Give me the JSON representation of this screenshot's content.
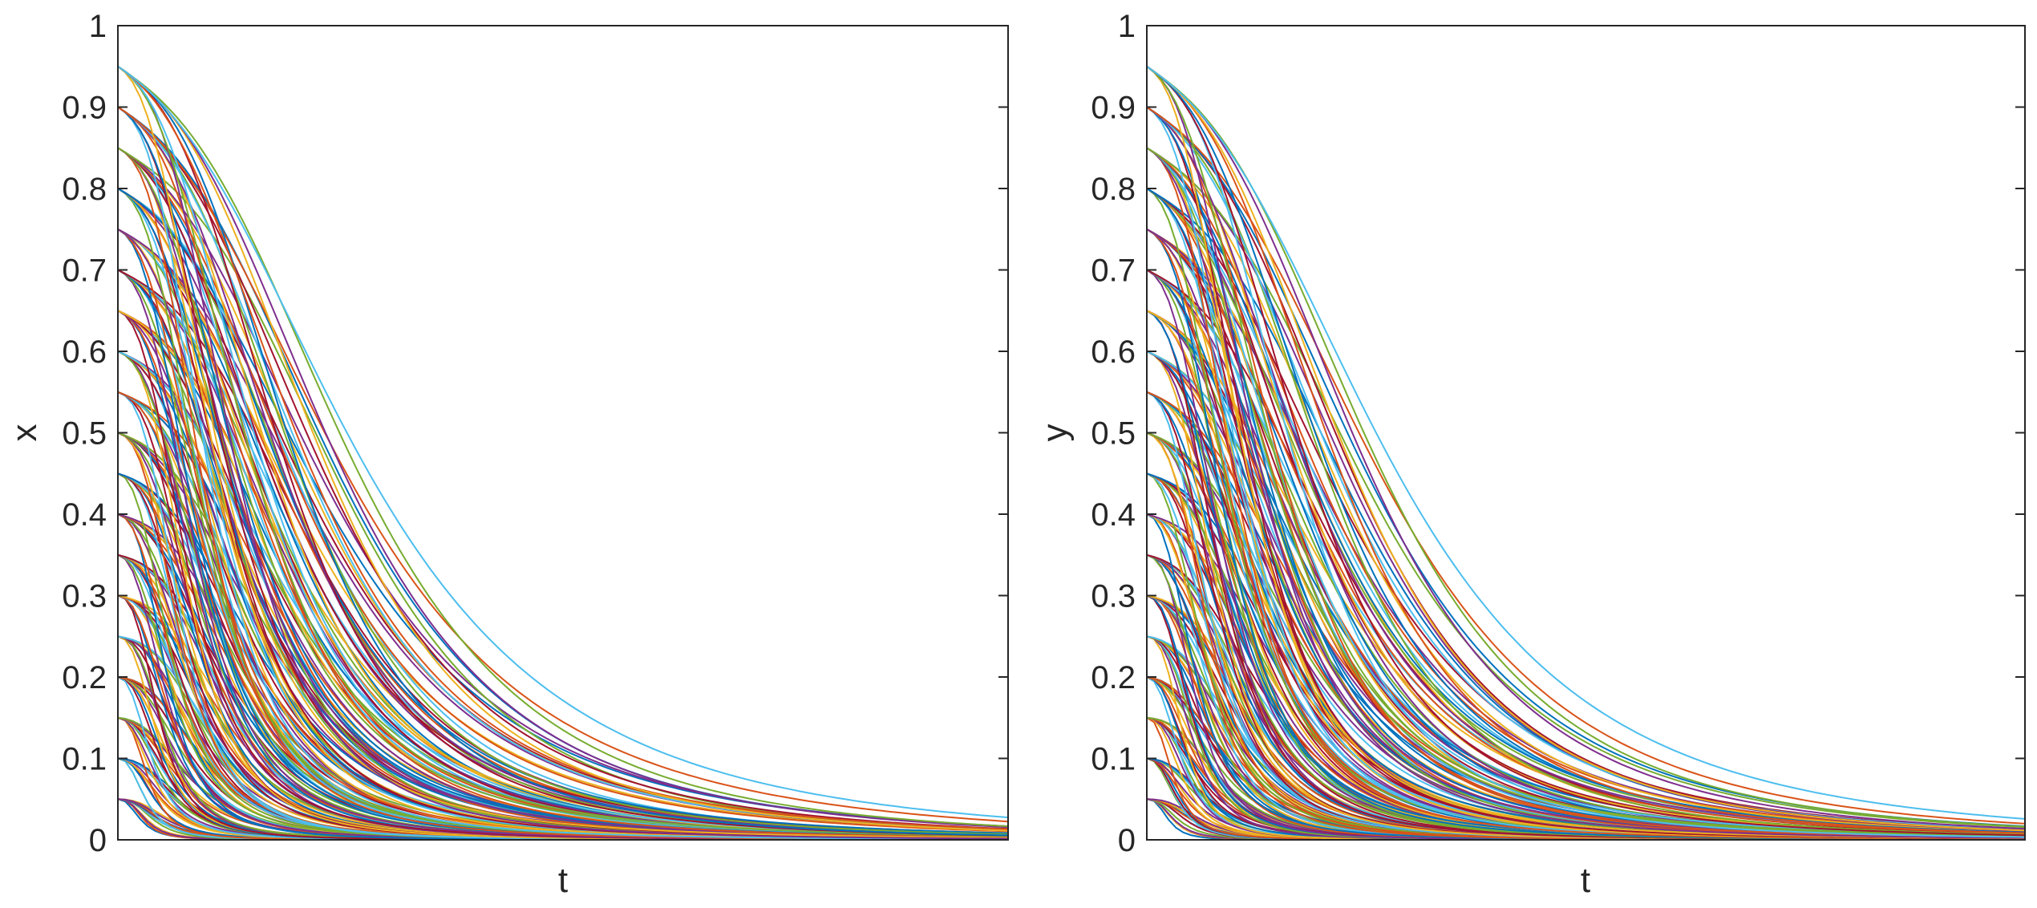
{
  "chart_data": [
    {
      "type": "line",
      "xlabel": "t",
      "ylabel": "x",
      "ylim": [
        0,
        1
      ],
      "yticks": [
        "0",
        "0.1",
        "0.2",
        "0.3",
        "0.4",
        "0.5",
        "0.6",
        "0.7",
        "0.8",
        "0.9",
        "1"
      ],
      "xticks_labeled": false,
      "grid": false,
      "legend": "none",
      "series_note_count": 190,
      "initial_values": [
        0.05,
        0.1,
        0.15,
        0.2,
        0.25,
        0.3,
        0.35,
        0.4,
        0.45,
        0.5,
        0.55,
        0.6,
        0.65,
        0.7,
        0.75,
        0.8,
        0.85,
        0.9,
        0.95
      ],
      "final_value": 0,
      "colors": [
        "#0072BD",
        "#D95319",
        "#EDB120",
        "#7E2F8E",
        "#77AC30",
        "#4DBEEE",
        "#A2142F"
      ]
    },
    {
      "type": "line",
      "xlabel": "t",
      "ylabel": "y",
      "ylim": [
        0,
        1
      ],
      "yticks": [
        "0",
        "0.1",
        "0.2",
        "0.3",
        "0.4",
        "0.5",
        "0.6",
        "0.7",
        "0.8",
        "0.9",
        "1"
      ],
      "xticks_labeled": false,
      "grid": false,
      "legend": "none",
      "initial_values": [
        0.05,
        0.1,
        0.15,
        0.2,
        0.25,
        0.3,
        0.35,
        0.4,
        0.45,
        0.5,
        0.55,
        0.6,
        0.65,
        0.7,
        0.75,
        0.8,
        0.85,
        0.9,
        0.95
      ],
      "final_value": 0,
      "colors": [
        "#0072BD",
        "#D95319",
        "#EDB120",
        "#7E2F8E",
        "#77AC30",
        "#4DBEEE",
        "#A2142F"
      ]
    }
  ]
}
